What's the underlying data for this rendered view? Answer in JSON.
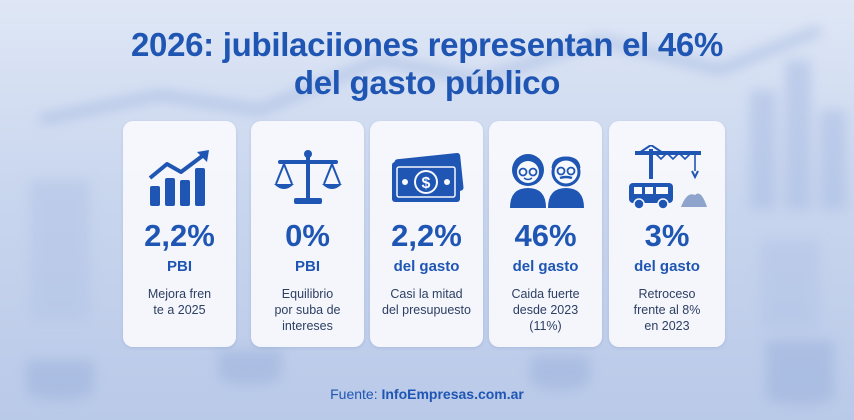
{
  "title": {
    "line1": "2026: jubilaciiones representan el 46%",
    "line2": "del gasto público"
  },
  "cards": [
    {
      "icon": "growth-chart-icon",
      "value": "2,2%",
      "unit": "PBI",
      "desc": [
        "Mejora fren",
        "te a 2025"
      ]
    },
    {
      "icon": "balance-scale-icon",
      "value": "0%",
      "unit": "PBI",
      "desc": [
        "Equilibrio",
        "por suba de",
        "intereses"
      ]
    },
    {
      "icon": "money-bill-icon",
      "value": "2,2%",
      "unit": "del gasto",
      "desc": [
        "Casi la mitad",
        "del presupuesto"
      ]
    },
    {
      "icon": "elderly-couple-icon",
      "value": "46%",
      "unit": "del gasto",
      "desc": [
        "Caida fuerte",
        "desde 2023",
        "(11%)"
      ]
    },
    {
      "icon": "construction-crane-icon",
      "value": "3%",
      "unit": "del gasto",
      "desc": [
        "Retroceso",
        "frente al 8%",
        "en 2023"
      ]
    }
  ],
  "source": {
    "label": "Fuente:",
    "site": "InfoEmpresas.com.ar"
  },
  "colors": {
    "accent": "#1f56b3",
    "text": "#2d3f63",
    "card": "#f7f9fd"
  }
}
